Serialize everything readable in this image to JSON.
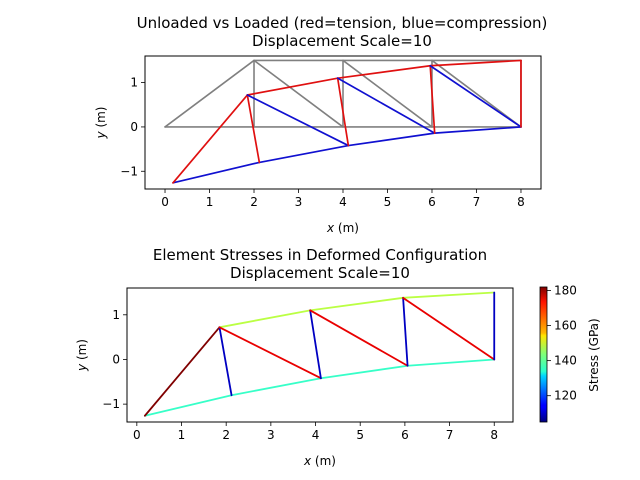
{
  "chart_data": [
    {
      "type": "line",
      "title": "Unloaded vs Loaded (red=tension, blue=compression)",
      "subtitle": "Displacement Scale=10",
      "xlabel_main": "x",
      "xlabel_unit": " (m)",
      "ylabel_main": "y",
      "ylabel_unit": " (m)",
      "xlim": [
        -0.45,
        8.45
      ],
      "ylim": [
        -1.4,
        1.6
      ],
      "xticks": [
        0,
        1,
        2,
        3,
        4,
        5,
        6,
        7,
        8
      ],
      "yticks": [
        -1,
        0,
        1
      ],
      "undeformed_color": "#808080",
      "tension_color": "#e01010",
      "compression_color": "#1010d0",
      "undeformed_members": [
        {
          "from": [
            0,
            0
          ],
          "to": [
            2,
            0
          ]
        },
        {
          "from": [
            2,
            0
          ],
          "to": [
            4,
            0
          ]
        },
        {
          "from": [
            4,
            0
          ],
          "to": [
            6,
            0
          ]
        },
        {
          "from": [
            6,
            0
          ],
          "to": [
            8,
            0
          ]
        },
        {
          "from": [
            2,
            1.5
          ],
          "to": [
            4,
            1.5
          ]
        },
        {
          "from": [
            4,
            1.5
          ],
          "to": [
            6,
            1.5
          ]
        },
        {
          "from": [
            6,
            1.5
          ],
          "to": [
            8,
            1.5
          ]
        },
        {
          "from": [
            0,
            0
          ],
          "to": [
            2,
            1.5
          ]
        },
        {
          "from": [
            2,
            1.5
          ],
          "to": [
            2,
            0
          ]
        },
        {
          "from": [
            2,
            1.5
          ],
          "to": [
            4,
            0
          ]
        },
        {
          "from": [
            4,
            1.5
          ],
          "to": [
            4,
            0
          ]
        },
        {
          "from": [
            4,
            1.5
          ],
          "to": [
            6,
            0
          ]
        },
        {
          "from": [
            6,
            1.5
          ],
          "to": [
            6,
            0
          ]
        },
        {
          "from": [
            6,
            1.5
          ],
          "to": [
            8,
            0
          ]
        },
        {
          "from": [
            8,
            1.5
          ],
          "to": [
            8,
            0
          ]
        }
      ],
      "deformed_members": [
        {
          "from": [
            0.18,
            -1.26
          ],
          "to": [
            2.12,
            -0.8
          ],
          "state": "compression"
        },
        {
          "from": [
            2.12,
            -0.8
          ],
          "to": [
            4.12,
            -0.42
          ],
          "state": "compression"
        },
        {
          "from": [
            4.12,
            -0.42
          ],
          "to": [
            6.06,
            -0.14
          ],
          "state": "compression"
        },
        {
          "from": [
            6.06,
            -0.14
          ],
          "to": [
            8,
            0
          ],
          "state": "compression"
        },
        {
          "from": [
            1.85,
            0.72
          ],
          "to": [
            3.88,
            1.1
          ],
          "state": "tension"
        },
        {
          "from": [
            3.88,
            1.1
          ],
          "to": [
            5.96,
            1.38
          ],
          "state": "tension"
        },
        {
          "from": [
            5.96,
            1.38
          ],
          "to": [
            8,
            1.5
          ],
          "state": "tension"
        },
        {
          "from": [
            0.18,
            -1.26
          ],
          "to": [
            1.85,
            0.72
          ],
          "state": "tension"
        },
        {
          "from": [
            1.85,
            0.72
          ],
          "to": [
            2.12,
            -0.8
          ],
          "state": "tension"
        },
        {
          "from": [
            1.85,
            0.72
          ],
          "to": [
            4.12,
            -0.42
          ],
          "state": "compression"
        },
        {
          "from": [
            3.88,
            1.1
          ],
          "to": [
            4.12,
            -0.42
          ],
          "state": "tension"
        },
        {
          "from": [
            3.88,
            1.1
          ],
          "to": [
            6.06,
            -0.14
          ],
          "state": "compression"
        },
        {
          "from": [
            5.96,
            1.38
          ],
          "to": [
            6.06,
            -0.14
          ],
          "state": "tension"
        },
        {
          "from": [
            5.96,
            1.38
          ],
          "to": [
            8,
            0
          ],
          "state": "compression"
        },
        {
          "from": [
            8,
            1.5
          ],
          "to": [
            8,
            0
          ],
          "state": "tension"
        }
      ]
    },
    {
      "type": "line",
      "title": "Element Stresses in Deformed Configuration",
      "subtitle": "Displacement Scale=10",
      "xlabel_main": "x",
      "xlabel_unit": " (m)",
      "ylabel_main": "y",
      "ylabel_unit": " (m)",
      "xlim": [
        -0.22,
        8.42
      ],
      "ylim": [
        -1.4,
        1.6
      ],
      "xticks": [
        0,
        1,
        2,
        3,
        4,
        5,
        6,
        7,
        8
      ],
      "yticks": [
        -1,
        0,
        1
      ],
      "colorbar": {
        "label": "Stress (GPa)",
        "range": [
          105,
          182
        ],
        "ticks": [
          120,
          140,
          160,
          180
        ],
        "colormap": "jet"
      },
      "members": [
        {
          "from": [
            0.18,
            -1.26
          ],
          "to": [
            2.12,
            -0.8
          ],
          "stress": 138
        },
        {
          "from": [
            2.12,
            -0.8
          ],
          "to": [
            4.12,
            -0.42
          ],
          "stress": 138
        },
        {
          "from": [
            4.12,
            -0.42
          ],
          "to": [
            6.06,
            -0.14
          ],
          "stress": 138
        },
        {
          "from": [
            6.06,
            -0.14
          ],
          "to": [
            8,
            0
          ],
          "stress": 138
        },
        {
          "from": [
            1.85,
            0.72
          ],
          "to": [
            3.88,
            1.1
          ],
          "stress": 148
        },
        {
          "from": [
            3.88,
            1.1
          ],
          "to": [
            5.96,
            1.38
          ],
          "stress": 148
        },
        {
          "from": [
            5.96,
            1.38
          ],
          "to": [
            8,
            1.5
          ],
          "stress": 148
        },
        {
          "from": [
            0.18,
            -1.26
          ],
          "to": [
            1.85,
            0.72
          ],
          "stress": 182
        },
        {
          "from": [
            1.85,
            0.72
          ],
          "to": [
            2.12,
            -0.8
          ],
          "stress": 110
        },
        {
          "from": [
            1.85,
            0.72
          ],
          "to": [
            4.12,
            -0.42
          ],
          "stress": 174
        },
        {
          "from": [
            3.88,
            1.1
          ],
          "to": [
            4.12,
            -0.42
          ],
          "stress": 110
        },
        {
          "from": [
            3.88,
            1.1
          ],
          "to": [
            6.06,
            -0.14
          ],
          "stress": 174
        },
        {
          "from": [
            5.96,
            1.38
          ],
          "to": [
            6.06,
            -0.14
          ],
          "stress": 110
        },
        {
          "from": [
            5.96,
            1.38
          ],
          "to": [
            8,
            0
          ],
          "stress": 174
        },
        {
          "from": [
            8,
            1.5
          ],
          "to": [
            8,
            0
          ],
          "stress": 110
        }
      ]
    }
  ]
}
